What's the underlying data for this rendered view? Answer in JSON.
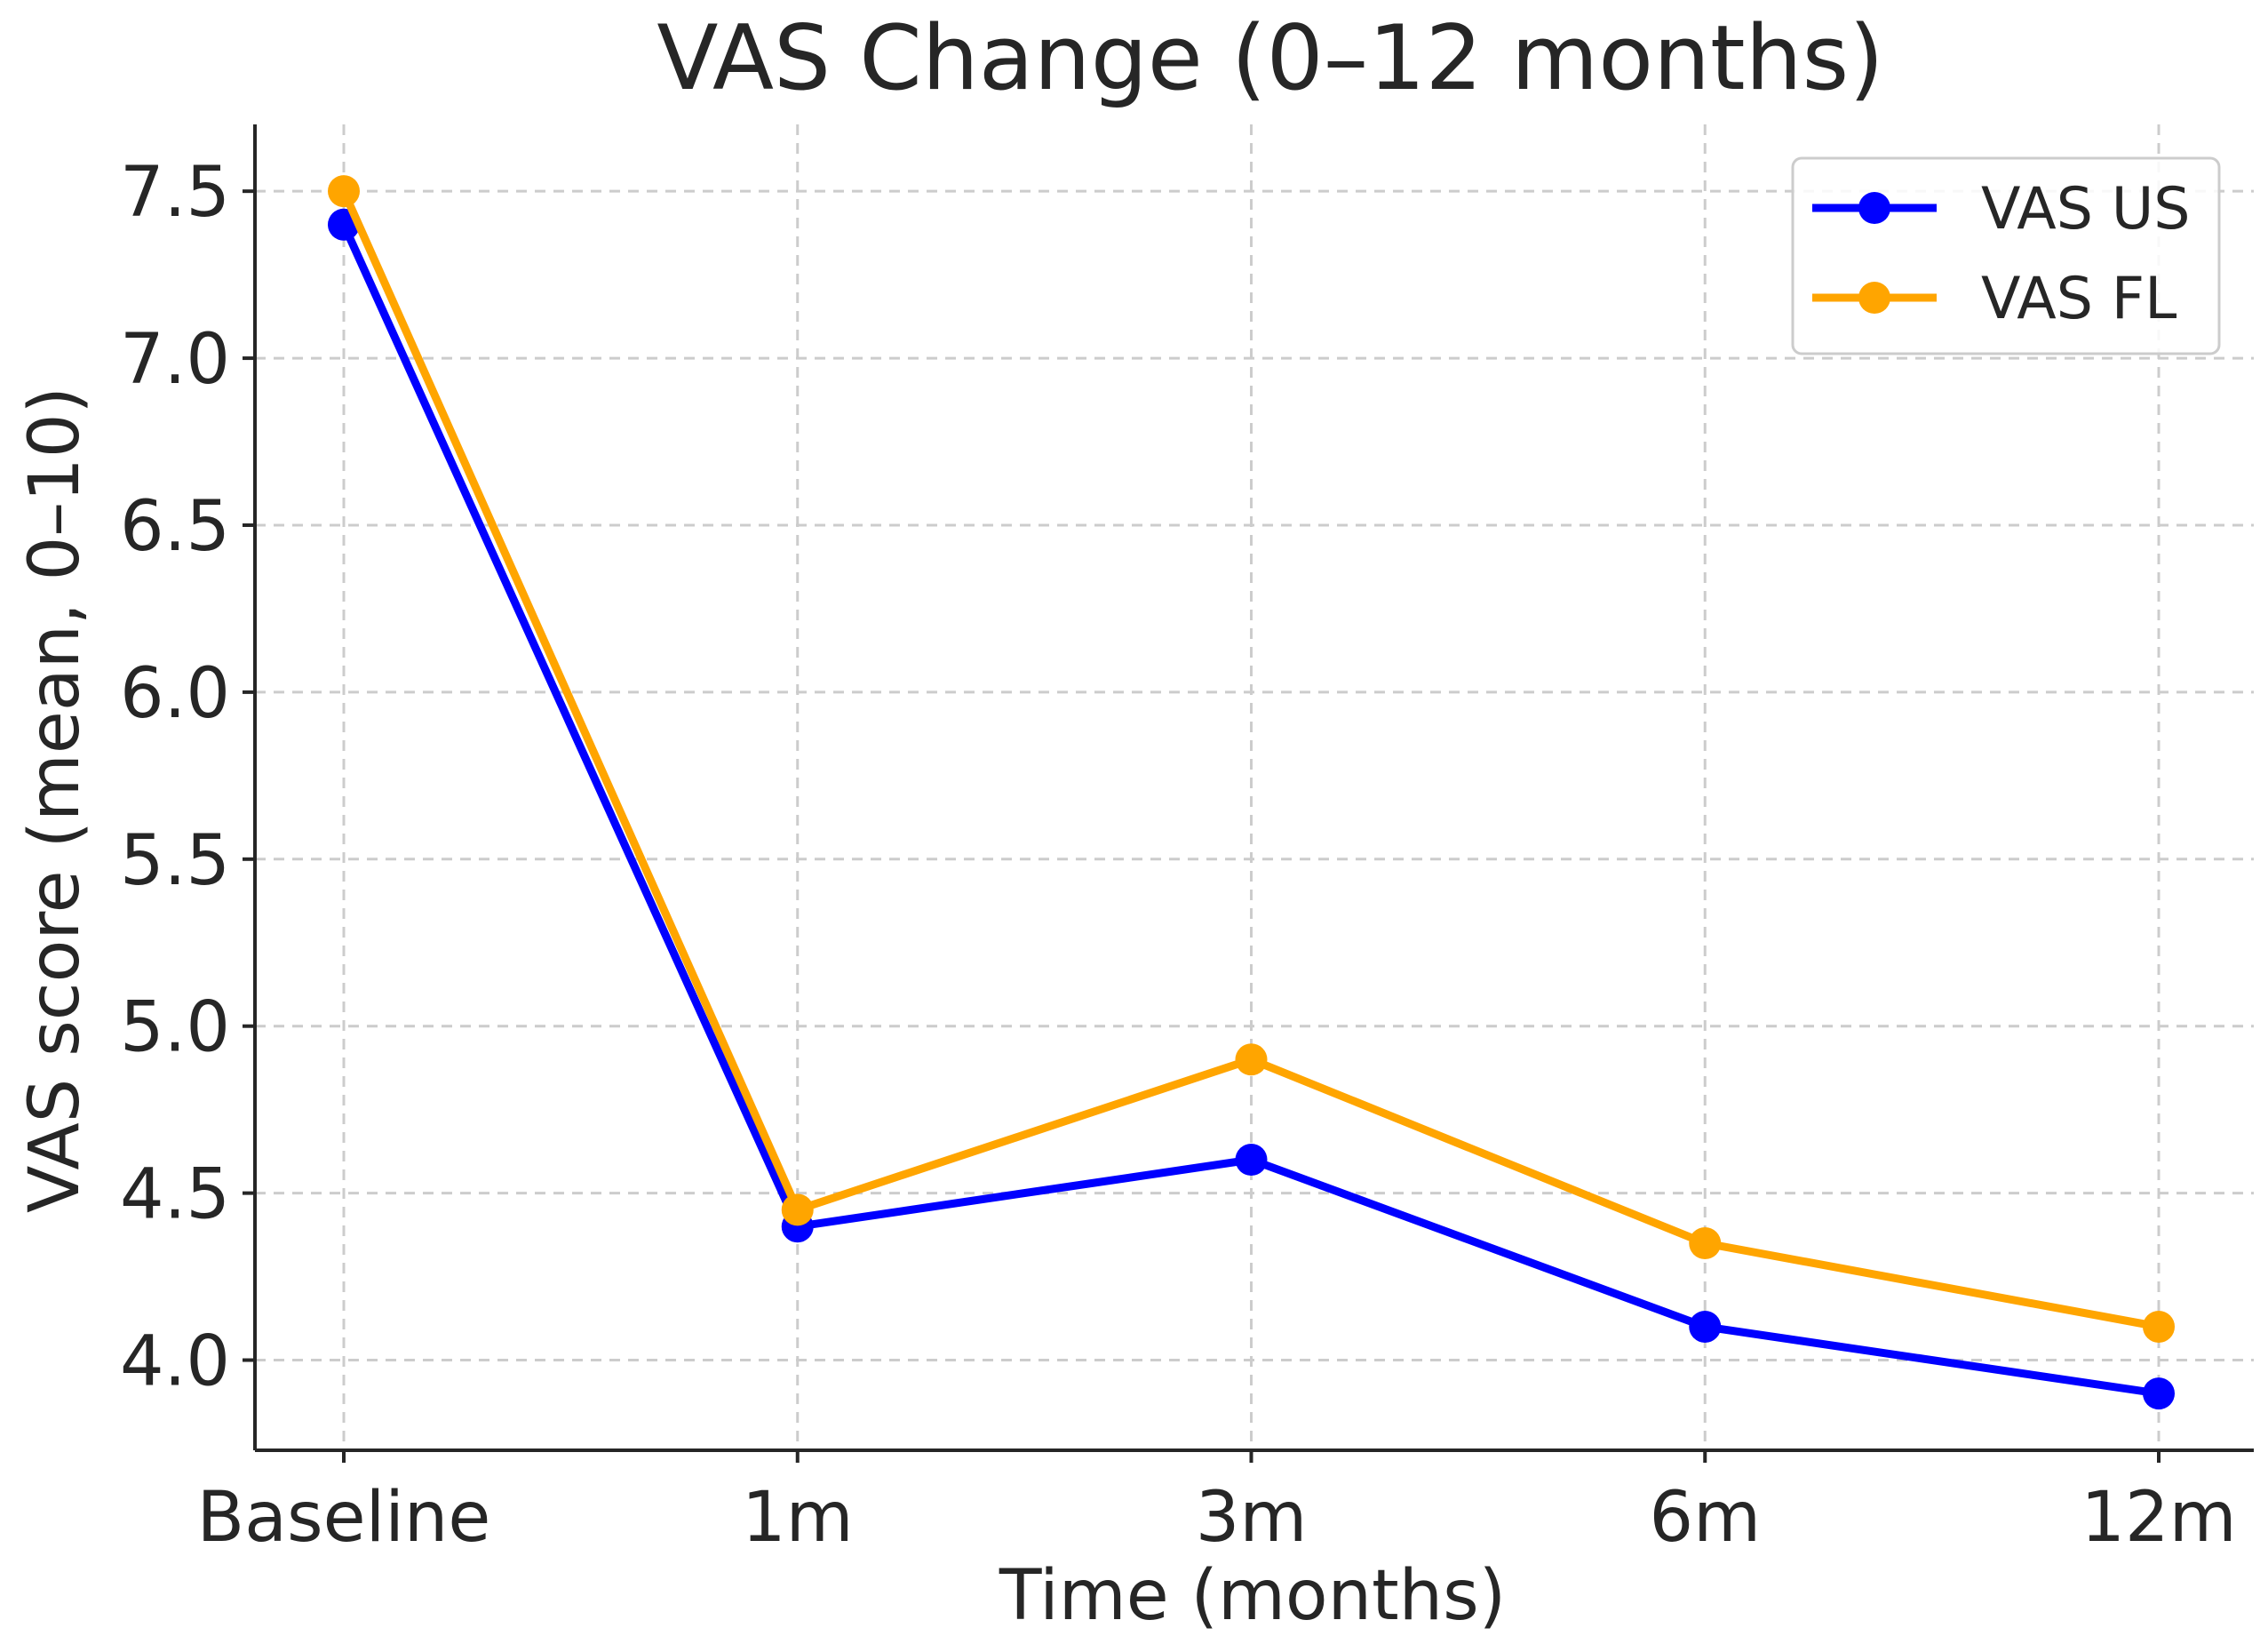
{
  "chart_data": {
    "type": "line",
    "title": "VAS Change (0–12 months)",
    "xlabel": "Time (months)",
    "ylabel": "VAS score (mean, 0–10)",
    "categories": [
      "Baseline",
      "1m",
      "3m",
      "6m",
      "12m"
    ],
    "ylim": [
      3.73,
      7.7
    ],
    "yticks": [
      "4.0",
      "4.5",
      "5.0",
      "5.5",
      "6.0",
      "6.5",
      "7.0",
      "7.5"
    ],
    "grid": true,
    "legend_position": "top-right",
    "series": [
      {
        "name": "VAS US",
        "color": "#0000ff",
        "values": [
          7.4,
          4.4,
          4.6,
          4.1,
          3.9
        ]
      },
      {
        "name": "VAS FL",
        "color": "#ffa500",
        "values": [
          7.5,
          4.45,
          4.9,
          4.35,
          4.1
        ]
      }
    ]
  }
}
